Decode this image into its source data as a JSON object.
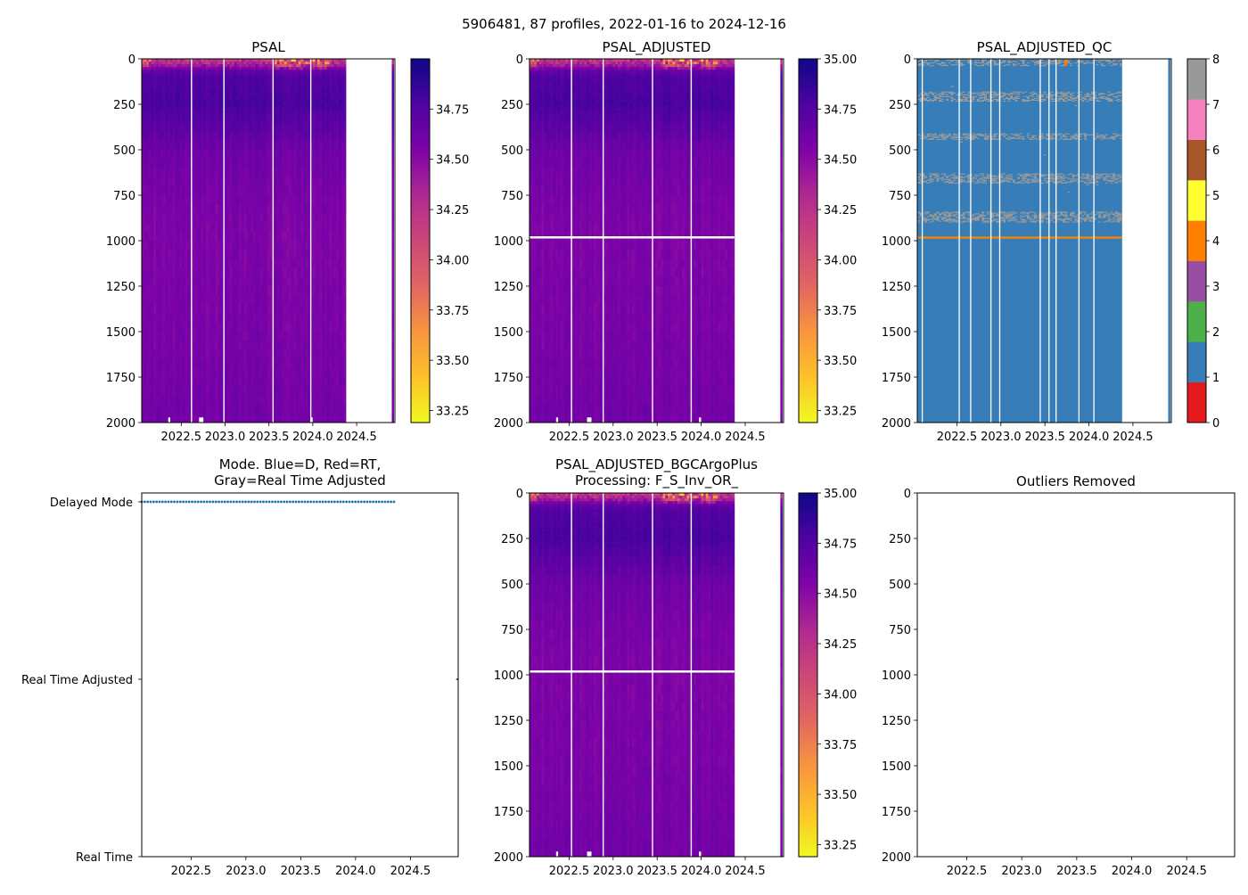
{
  "figure": {
    "suptitle": "5906481, 87 profiles, 2022-01-16 to 2024-12-16"
  },
  "chart_data": [
    {
      "id": "psal",
      "type": "heatmap",
      "title": "PSAL",
      "xlim": [
        2022.05,
        2024.936
      ],
      "ylim": [
        2000,
        0
      ],
      "xticks": [
        "2022.5",
        "2023.0",
        "2023.5",
        "2024.0",
        "2024.5"
      ],
      "yticks": [
        "0",
        "250",
        "500",
        "750",
        "1000",
        "1250",
        "1500",
        "1750",
        "2000"
      ],
      "colorbar": {
        "clim": [
          33.19,
          35.0
        ],
        "ticks": [
          "33.25",
          "33.50",
          "33.75",
          "34.00",
          "34.25",
          "34.50",
          "34.75"
        ],
        "cmap": "plasma_r"
      },
      "profile_time_range": [
        2022.05,
        2024.35
      ],
      "extra_profile_time": 2024.9,
      "mean_profile": {
        "depth": [
          0,
          30,
          50,
          100,
          250,
          500,
          750,
          1000,
          1500,
          2000
        ],
        "salinity": [
          34.4,
          34.45,
          34.6,
          34.75,
          34.78,
          34.62,
          34.57,
          34.55,
          34.57,
          34.6
        ]
      },
      "gap_times": [
        2022.61,
        2022.98,
        2023.54,
        2023.97
      ],
      "missing_level_depth": null
    },
    {
      "id": "psal-adjusted",
      "type": "heatmap",
      "title": "PSAL_ADJUSTED",
      "xlim": [
        2022.05,
        2024.936
      ],
      "ylim": [
        2000,
        0
      ],
      "xticks": [
        "2022.5",
        "2023.0",
        "2023.5",
        "2024.0",
        "2024.5"
      ],
      "yticks": [
        "0",
        "250",
        "500",
        "750",
        "1000",
        "1250",
        "1500",
        "1750",
        "2000"
      ],
      "colorbar": {
        "clim": [
          33.19,
          35.0
        ],
        "ticks": [
          "33.25",
          "33.50",
          "33.75",
          "34.00",
          "34.25",
          "34.50",
          "34.75",
          "35.00"
        ],
        "cmap": "plasma_r"
      },
      "profile_time_range": [
        2022.05,
        2024.35
      ],
      "extra_profile_time": 2024.9,
      "mean_profile": {
        "depth": [
          0,
          30,
          50,
          100,
          250,
          500,
          750,
          1000,
          1500,
          2000
        ],
        "salinity": [
          34.4,
          34.45,
          34.6,
          34.75,
          34.78,
          34.62,
          34.57,
          34.55,
          34.57,
          34.6
        ]
      },
      "gap_times": [
        2022.52,
        2022.88,
        2023.44,
        2023.88
      ],
      "missing_level_depth": 983
    },
    {
      "id": "psal-adjusted-qc",
      "type": "heatmap",
      "title": "PSAL_ADJUSTED_QC",
      "xlim": [
        2022.05,
        2024.936
      ],
      "ylim": [
        2000,
        0
      ],
      "xticks": [
        "2022.5",
        "2023.0",
        "2023.5",
        "2024.0",
        "2024.5"
      ],
      "yticks": [
        "0",
        "250",
        "500",
        "750",
        "1000",
        "1250",
        "1500",
        "1750",
        "2000"
      ],
      "colorbar": {
        "ticks": [
          "0",
          "1",
          "2",
          "3",
          "4",
          "5",
          "6",
          "7",
          "8"
        ],
        "colors": [
          "#e41a1c",
          "#377eb8",
          "#4daf4a",
          "#984ea3",
          "#ff7f00",
          "#ffff33",
          "#a65628",
          "#f781bf",
          "#999999"
        ]
      },
      "profile_time_range": [
        2022.05,
        2024.35
      ],
      "extra_profile_time": 2024.9,
      "dominant_qc": 1,
      "qc8_depth_bands": [
        [
          0,
          40
        ],
        [
          180,
          235
        ],
        [
          410,
          445
        ],
        [
          630,
          685
        ],
        [
          840,
          900
        ]
      ],
      "qc4_depth": 983,
      "gap_times": [
        2022.1,
        2022.52,
        2022.65,
        2022.88,
        2022.98,
        2023.44,
        2023.54,
        2023.62,
        2023.88,
        2024.05
      ]
    },
    {
      "id": "mode",
      "type": "scatter",
      "title_line1": "Mode. Blue=D, Red=RT,",
      "title_line2": "Gray=Real Time Adjusted",
      "xlim": [
        2022.05,
        2024.936
      ],
      "xticks": [
        "2022.5",
        "2023.0",
        "2023.5",
        "2024.0",
        "2024.5"
      ],
      "yticks": [
        "Real Time",
        "Real Time Adjusted",
        "Delayed Mode"
      ],
      "delayed_mode_time_range": [
        2022.05,
        2024.35
      ],
      "delayed_mode_count": 86,
      "real_time_adjusted_times": [
        2024.93
      ],
      "colors": {
        "delayed": "#1f77b4",
        "rta": "#2a5a8a"
      }
    },
    {
      "id": "psal-adjusted-bgc",
      "type": "heatmap",
      "title_line1": "PSAL_ADJUSTED_BGCArgoPlus",
      "title_line2": "Processing: F_S_Inv_OR_",
      "xlim": [
        2022.05,
        2024.936
      ],
      "ylim": [
        2000,
        0
      ],
      "xticks": [
        "2022.5",
        "2023.0",
        "2023.5",
        "2024.0",
        "2024.5"
      ],
      "yticks": [
        "0",
        "250",
        "500",
        "750",
        "1000",
        "1250",
        "1500",
        "1750",
        "2000"
      ],
      "colorbar": {
        "clim": [
          33.19,
          35.0
        ],
        "ticks": [
          "33.25",
          "33.50",
          "33.75",
          "34.00",
          "34.25",
          "34.50",
          "34.75",
          "35.00"
        ],
        "cmap": "plasma_r"
      },
      "profile_time_range": [
        2022.05,
        2024.35
      ],
      "extra_profile_time": 2024.9,
      "mean_profile": {
        "depth": [
          0,
          30,
          50,
          100,
          250,
          500,
          750,
          1000,
          1500,
          2000
        ],
        "salinity": [
          34.4,
          34.45,
          34.6,
          34.75,
          34.78,
          34.62,
          34.57,
          34.55,
          34.57,
          34.6
        ]
      },
      "gap_times": [
        2022.52,
        2022.88,
        2023.44,
        2023.88
      ],
      "missing_level_depth": 983
    },
    {
      "id": "outliers",
      "type": "scatter",
      "title": "Outliers Removed",
      "xlim": [
        2022.05,
        2024.936
      ],
      "ylim": [
        2000,
        0
      ],
      "xticks": [
        "2022.5",
        "2023.0",
        "2023.5",
        "2024.0",
        "2024.5"
      ],
      "yticks": [
        "0",
        "250",
        "500",
        "750",
        "1000",
        "1250",
        "1500",
        "1750",
        "2000"
      ],
      "points": []
    }
  ]
}
